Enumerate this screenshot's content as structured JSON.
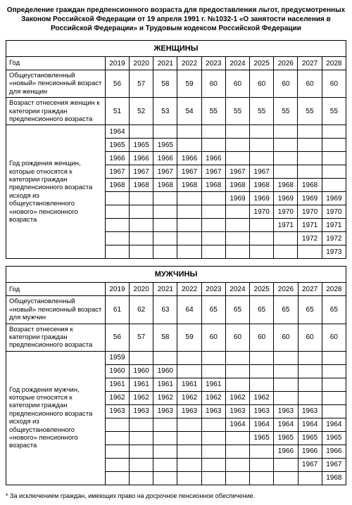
{
  "title": "Определение граждан предпенсионного возраста для предоставления льгот, предусмотренных Законом Российской Федерации от 19 апреля 1991 г. №1032-1 «О занятости населения в Российской Федерации» и Трудовым кодексом Российской Федерации",
  "years": [
    "2019",
    "2020",
    "2021",
    "2022",
    "2023",
    "2024",
    "2025",
    "2026",
    "2027",
    "2028"
  ],
  "women": {
    "heading": "ЖЕНЩИНЫ",
    "year_label": "Год",
    "row1_label": "Общеустановленный «новый» пенсионный возраст для женщин",
    "row1": [
      "56",
      "57",
      "58",
      "59",
      "60",
      "60",
      "60",
      "60",
      "60",
      "60"
    ],
    "row2_label": "Возраст отнесения женщин к категории граждан предпенсионного возраста",
    "row2": [
      "51",
      "52",
      "53",
      "54",
      "55",
      "55",
      "55",
      "55",
      "55",
      "55"
    ],
    "birth_label": "Год рождения женщин, которые относятся к категории граждан предпенсионного возраста исходя из общеустановленного «нового» пенсионного возраста",
    "birth_rows": [
      [
        "1964",
        "",
        "",
        "",
        "",
        "",
        "",
        "",
        "",
        ""
      ],
      [
        "1965",
        "1965",
        "1965",
        "",
        "",
        "",
        "",
        "",
        "",
        ""
      ],
      [
        "1966",
        "1966",
        "1966",
        "1966",
        "1966",
        "",
        "",
        "",
        "",
        ""
      ],
      [
        "1967",
        "1967",
        "1967",
        "1967",
        "1967",
        "1967",
        "1967",
        "",
        "",
        ""
      ],
      [
        "1968",
        "1968",
        "1968",
        "1968",
        "1968",
        "1968",
        "1968",
        "1968",
        "1968",
        ""
      ],
      [
        "",
        "",
        "",
        "",
        "",
        "1969",
        "1969",
        "1969",
        "1969",
        "1969"
      ],
      [
        "",
        "",
        "",
        "",
        "",
        "",
        "1970",
        "1970",
        "1970",
        "1970"
      ],
      [
        "",
        "",
        "",
        "",
        "",
        "",
        "",
        "1971",
        "1971",
        "1971"
      ],
      [
        "",
        "",
        "",
        "",
        "",
        "",
        "",
        "",
        "1972",
        "1972"
      ],
      [
        "",
        "",
        "",
        "",
        "",
        "",
        "",
        "",
        "",
        "1973"
      ]
    ]
  },
  "men": {
    "heading": "МУЖЧИНЫ",
    "year_label": "Год",
    "row1_label": "Общеустановленный «новый» пенсионный возраст для мужчин",
    "row1": [
      "61",
      "62",
      "63",
      "64",
      "65",
      "65",
      "65",
      "65",
      "65",
      "65"
    ],
    "row2_label": "Возраст отнесения к категории граждан предпенсионного возраста",
    "row2": [
      "56",
      "57",
      "58",
      "59",
      "60",
      "60",
      "60",
      "60",
      "60",
      "60"
    ],
    "birth_label": "Год рождения мужчин, которые относятся к категории граждан предпенсионного возраста исходя из общеустановленного «нового» пенсионного возраста",
    "birth_rows": [
      [
        "1959",
        "",
        "",
        "",
        "",
        "",
        "",
        "",
        "",
        ""
      ],
      [
        "1960",
        "1960",
        "1960",
        "",
        "",
        "",
        "",
        "",
        "",
        ""
      ],
      [
        "1961",
        "1961",
        "1961",
        "1961",
        "1961",
        "",
        "",
        "",
        "",
        ""
      ],
      [
        "1962",
        "1962",
        "1962",
        "1962",
        "1962",
        "1962",
        "1962",
        "",
        "",
        ""
      ],
      [
        "1963",
        "1963",
        "1963",
        "1963",
        "1963",
        "1963",
        "1963",
        "1963",
        "1963",
        ""
      ],
      [
        "",
        "",
        "",
        "",
        "",
        "1964",
        "1964",
        "1964",
        "1964",
        "1964"
      ],
      [
        "",
        "",
        "",
        "",
        "",
        "",
        "1965",
        "1965",
        "1965",
        "1965"
      ],
      [
        "",
        "",
        "",
        "",
        "",
        "",
        "",
        "1966",
        "1966",
        "1966"
      ],
      [
        "",
        "",
        "",
        "",
        "",
        "",
        "",
        "",
        "1967",
        "1967"
      ],
      [
        "",
        "",
        "",
        "",
        "",
        "",
        "",
        "",
        "",
        "1968"
      ]
    ]
  },
  "footnote": "* За исключением граждан, имеющих право на досрочное пенсионное обеспечение."
}
